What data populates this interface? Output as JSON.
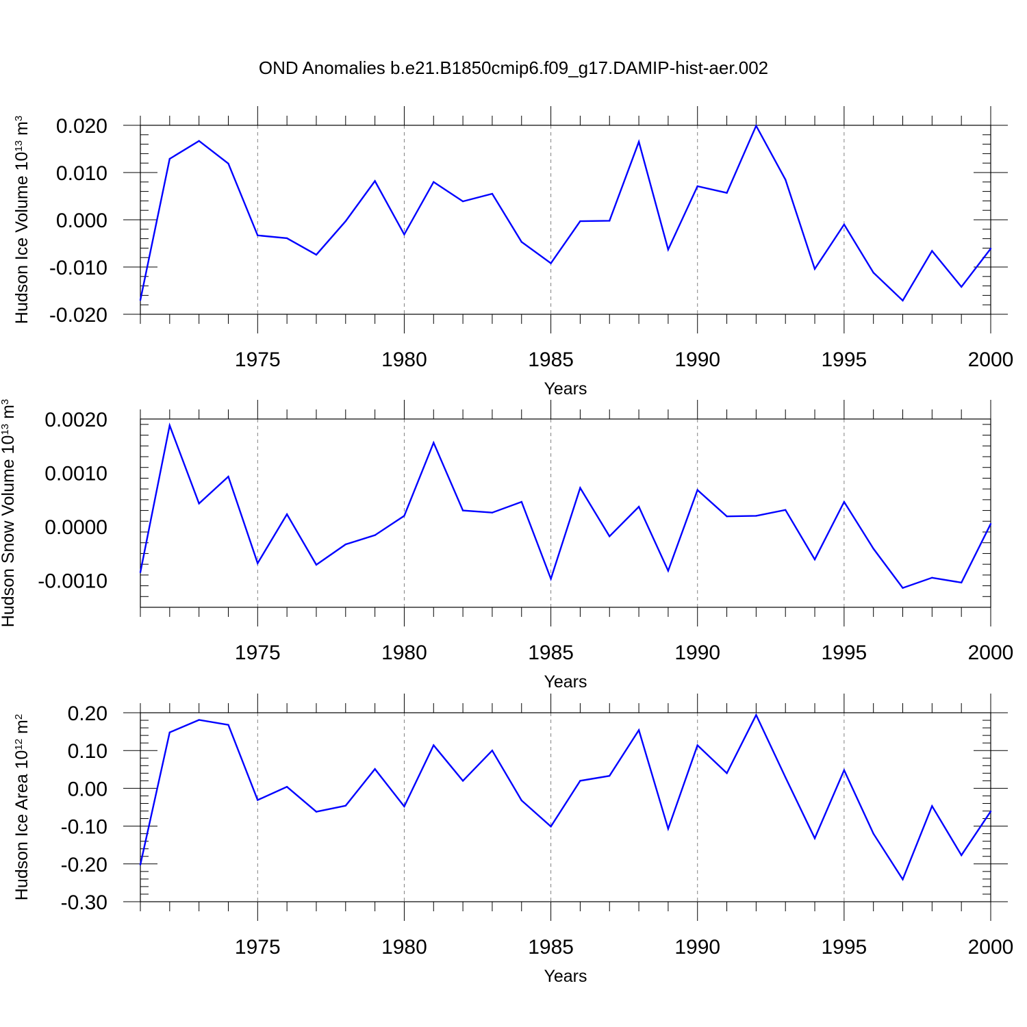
{
  "title": "OND Anomalies b.e21.B1850cmip6.f09_g17.DAMIP-hist-aer.002",
  "colors": {
    "line": "#0000ff",
    "axes": "#000000",
    "grid": "#808080"
  },
  "chart_data": [
    {
      "type": "line",
      "ylabel": {
        "text": "Hudson Ice Volume 10",
        "exp": "13",
        "unit": " m",
        "unit_exp": "3"
      },
      "xlabel": "Years",
      "xlim": [
        1971,
        2000
      ],
      "ylim": [
        -0.02,
        0.02
      ],
      "yticks": [
        -0.02,
        -0.01,
        0.0,
        0.01,
        0.02
      ],
      "ytick_labels": [
        "-0.020",
        "-0.010",
        "0.000",
        "0.010",
        "0.020"
      ],
      "xticks": [
        1975,
        1980,
        1985,
        1990,
        1995,
        2000
      ],
      "xtick_labels": [
        "1975",
        "1980",
        "1985",
        "1990",
        "1995",
        "2000"
      ],
      "grid": "vertical dashed at major x ticks",
      "x": [
        1971,
        1972,
        1973,
        1974,
        1975,
        1976,
        1977,
        1978,
        1979,
        1980,
        1981,
        1982,
        1983,
        1984,
        1985,
        1986,
        1987,
        1988,
        1989,
        1990,
        1991,
        1992,
        1993,
        1994,
        1995,
        1996,
        1997,
        1998,
        1999,
        2000
      ],
      "values": [
        -0.017,
        0.0129,
        0.0167,
        0.0119,
        -0.0033,
        -0.0039,
        -0.0074,
        -0.0003,
        0.0082,
        -0.0031,
        0.008,
        0.0039,
        0.0055,
        -0.0047,
        -0.0092,
        -0.0003,
        -0.0002,
        0.0165,
        -0.0063,
        0.0071,
        0.0057,
        0.0199,
        0.0085,
        -0.0104,
        -0.001,
        -0.0112,
        -0.0171,
        -0.0066,
        -0.0142,
        -0.0061
      ]
    },
    {
      "type": "line",
      "ylabel": {
        "text": "Hudson Snow Volume 10",
        "exp": "13",
        "unit": " m",
        "unit_exp": "3"
      },
      "xlabel": "Years",
      "xlim": [
        1971,
        2000
      ],
      "ylim": [
        -0.0015,
        0.002
      ],
      "yticks": [
        -0.001,
        0.0,
        0.001,
        0.002
      ],
      "ytick_labels": [
        "-0.0010",
        "0.0000",
        "0.0010",
        "0.0020"
      ],
      "xticks": [
        1975,
        1980,
        1985,
        1990,
        1995,
        2000
      ],
      "xtick_labels": [
        "1975",
        "1980",
        "1985",
        "1990",
        "1995",
        "2000"
      ],
      "grid": "vertical dashed at major x ticks",
      "x": [
        1971,
        1972,
        1973,
        1974,
        1975,
        1976,
        1977,
        1978,
        1979,
        1980,
        1981,
        1982,
        1983,
        1984,
        1985,
        1986,
        1987,
        1988,
        1989,
        1990,
        1991,
        1992,
        1993,
        1994,
        1995,
        1996,
        1997,
        1998,
        1999,
        2000
      ],
      "values": [
        -0.00085,
        0.00188,
        0.00043,
        0.00093,
        -0.00068,
        0.00023,
        -0.00071,
        -0.00033,
        -0.00016,
        0.0002,
        0.00156,
        0.0003,
        0.00026,
        0.00046,
        -0.00097,
        0.00072,
        -0.00018,
        0.00037,
        -0.00082,
        0.00068,
        0.00019,
        0.0002,
        0.00031,
        -0.00061,
        0.00046,
        -0.00041,
        -0.00114,
        -0.00095,
        -0.00104,
        5e-05
      ]
    },
    {
      "type": "line",
      "ylabel": {
        "text": "Hudson Ice Area 10",
        "exp": "12",
        "unit": " m",
        "unit_exp": "2"
      },
      "xlabel": "Years",
      "xlim": [
        1971,
        2000
      ],
      "ylim": [
        -0.3,
        0.2
      ],
      "yticks": [
        -0.3,
        -0.2,
        -0.1,
        0.0,
        0.1,
        0.2
      ],
      "ytick_labels": [
        "-0.30",
        "-0.20",
        "-0.10",
        "0.00",
        "0.10",
        "0.20"
      ],
      "xticks": [
        1975,
        1980,
        1985,
        1990,
        1995,
        2000
      ],
      "xtick_labels": [
        "1975",
        "1980",
        "1985",
        "1990",
        "1995",
        "2000"
      ],
      "grid": "vertical dashed at major x ticks",
      "x": [
        1971,
        1972,
        1973,
        1974,
        1975,
        1976,
        1977,
        1978,
        1979,
        1980,
        1981,
        1982,
        1983,
        1984,
        1985,
        1986,
        1987,
        1988,
        1989,
        1990,
        1991,
        1992,
        1993,
        1994,
        1995,
        1996,
        1997,
        1998,
        1999,
        2000
      ],
      "values": [
        -0.202,
        0.148,
        0.181,
        0.168,
        -0.031,
        0.004,
        -0.062,
        -0.046,
        0.051,
        -0.048,
        0.114,
        0.02,
        0.1,
        -0.032,
        -0.101,
        0.02,
        0.033,
        0.154,
        -0.107,
        0.114,
        0.04,
        0.194,
        0.029,
        -0.132,
        0.048,
        -0.12,
        -0.241,
        -0.047,
        -0.177,
        -0.061
      ]
    }
  ]
}
